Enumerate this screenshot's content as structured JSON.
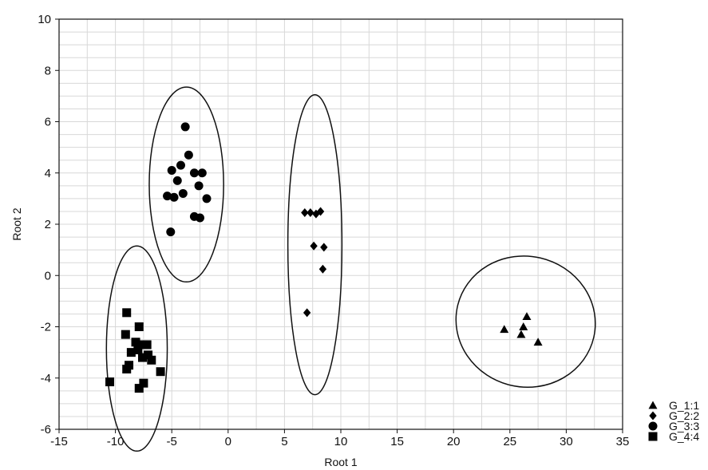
{
  "chart_data": {
    "type": "scatter",
    "xlabel": "Root 1",
    "ylabel": "Root 2",
    "xlim": [
      -15,
      35
    ],
    "ylim": [
      -6,
      10
    ],
    "xticks": [
      -15,
      -10,
      -5,
      0,
      5,
      10,
      15,
      20,
      25,
      30,
      35
    ],
    "yticks": [
      -6,
      -4,
      -2,
      0,
      2,
      4,
      6,
      8,
      10
    ],
    "grid": true,
    "legend_position": "bottom-right",
    "series": [
      {
        "name": "G_1:1",
        "marker": "triangle",
        "color": "#000000",
        "points": [
          [
            24.5,
            -2.1
          ],
          [
            26.5,
            -1.6
          ],
          [
            26.2,
            -2.0
          ],
          [
            26.0,
            -2.3
          ],
          [
            27.5,
            -2.6
          ]
        ],
        "ellipse": {
          "center": [
            26.4,
            -1.8
          ],
          "radius_x": 6.2,
          "radius_y": 2.55,
          "rotation_deg": 13
        }
      },
      {
        "name": "G_2:2",
        "marker": "diamond",
        "color": "#000000",
        "points": [
          [
            6.8,
            2.45
          ],
          [
            7.3,
            2.45
          ],
          [
            7.8,
            2.4
          ],
          [
            8.2,
            2.5
          ],
          [
            7.6,
            1.15
          ],
          [
            8.5,
            1.1
          ],
          [
            8.4,
            0.25
          ],
          [
            7.0,
            -1.45
          ]
        ],
        "ellipse": {
          "center": [
            7.7,
            1.2
          ],
          "radius_x": 2.4,
          "radius_y": 5.85,
          "rotation_deg": 0
        }
      },
      {
        "name": "G_3:3",
        "marker": "circle",
        "color": "#000000",
        "points": [
          [
            -3.8,
            5.8
          ],
          [
            -3.5,
            4.7
          ],
          [
            -4.2,
            4.3
          ],
          [
            -5.0,
            4.1
          ],
          [
            -3.0,
            4.0
          ],
          [
            -2.3,
            4.0
          ],
          [
            -4.5,
            3.7
          ],
          [
            -2.6,
            3.5
          ],
          [
            -4.0,
            3.2
          ],
          [
            -5.4,
            3.1
          ],
          [
            -4.8,
            3.05
          ],
          [
            -1.9,
            3.0
          ],
          [
            -3.0,
            2.3
          ],
          [
            -2.5,
            2.25
          ],
          [
            -5.1,
            1.7
          ]
        ],
        "ellipse": {
          "center": [
            -3.7,
            3.55
          ],
          "radius_x": 3.3,
          "radius_y": 3.8,
          "rotation_deg": 0
        }
      },
      {
        "name": "G_4:4",
        "marker": "square",
        "color": "#000000",
        "points": [
          [
            -9.0,
            -1.45
          ],
          [
            -7.9,
            -2.0
          ],
          [
            -9.1,
            -2.3
          ],
          [
            -8.2,
            -2.6
          ],
          [
            -7.5,
            -2.7
          ],
          [
            -8.0,
            -2.9
          ],
          [
            -7.2,
            -2.7
          ],
          [
            -8.6,
            -3.0
          ],
          [
            -7.6,
            -3.2
          ],
          [
            -7.1,
            -3.1
          ],
          [
            -6.8,
            -3.3
          ],
          [
            -8.8,
            -3.5
          ],
          [
            -9.0,
            -3.65
          ],
          [
            -6.0,
            -3.75
          ],
          [
            -7.5,
            -4.2
          ],
          [
            -7.9,
            -4.4
          ],
          [
            -10.5,
            -4.15
          ]
        ],
        "ellipse": {
          "center": [
            -8.1,
            -2.85
          ],
          "radius_x": 2.7,
          "radius_y": 4.0,
          "rotation_deg": 0
        }
      }
    ]
  }
}
